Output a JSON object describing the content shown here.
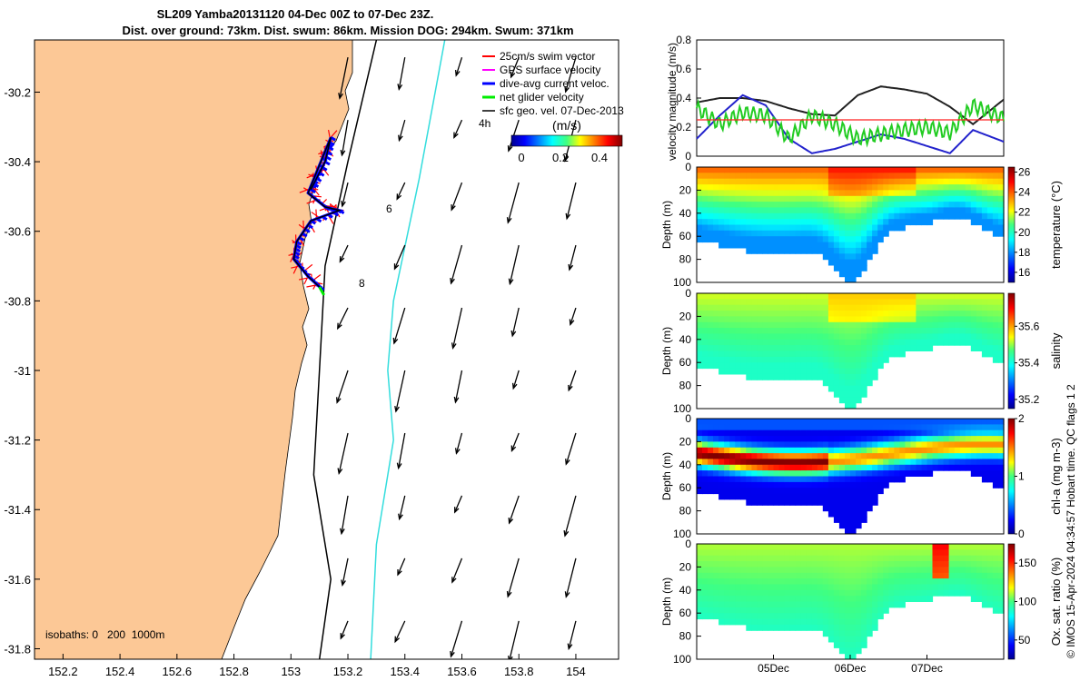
{
  "title": {
    "line1": "SL209 Yamba20131120 04-Dec 00Z to 07-Dec 23Z.",
    "line2": "Dist. over ground: 73km. Dist. swum: 86km. Mission DOG: 294km. Swum: 371km"
  },
  "credit": "© IMOS 15-Apr-2024 04:34:57 Hobart time. QC flags 1  2",
  "colors": {
    "land": "#fcc896",
    "swim": "#ff0000",
    "gps": "#ff00ff",
    "dive_avg": "#0000ff",
    "net_glider": "#00ee00",
    "geostrophic": "#000000",
    "isobath_200": "#000000",
    "isobath_1000": "#33dddd"
  },
  "chart_data": [
    {
      "id": "map",
      "type": "scatter",
      "xlabel": "",
      "ylabel": "",
      "xlim": [
        152.1,
        154.15
      ],
      "ylim": [
        -31.83,
        -30.05
      ],
      "xticks": [
        "152.2",
        "152.4",
        "152.6",
        "152.8",
        "153",
        "153.2",
        "153.4",
        "153.6",
        "153.8",
        "154"
      ],
      "yticks": [
        "-30.2",
        "-30.4",
        "-30.6",
        "-30.8",
        "-31",
        "-31.2",
        "-31.4",
        "-31.6",
        "-31.8"
      ],
      "legend": {
        "placement": "top-right",
        "entries": [
          "25cm/s swim vector",
          "GPS surface velocity",
          "dive-avg current veloc.",
          "net glider velocity",
          "sfc geo. vel. 07-Dec-2013"
        ]
      },
      "colorbar": {
        "label": "(m/s)",
        "ticks": [
          "0",
          "0.2",
          "0.4"
        ],
        "range": [
          0,
          0.5
        ]
      },
      "isobaths_label": "isobaths: 0   200  1000m",
      "track_labels": [
        "4h",
        "6",
        "8"
      ],
      "glider_track": [
        [
          153.07,
          -30.48
        ],
        [
          153.12,
          -30.4
        ],
        [
          153.14,
          -30.33
        ],
        [
          153.09,
          -30.43
        ],
        [
          153.06,
          -30.49
        ],
        [
          153.12,
          -30.53
        ],
        [
          153.17,
          -30.54
        ],
        [
          153.07,
          -30.57
        ],
        [
          153.02,
          -30.63
        ],
        [
          153.01,
          -30.68
        ],
        [
          153.06,
          -30.73
        ],
        [
          153.1,
          -30.76
        ]
      ],
      "isobath_200": [
        [
          153.3,
          -30.05
        ],
        [
          153.2,
          -30.4
        ],
        [
          153.12,
          -30.7
        ],
        [
          153.1,
          -31.0
        ],
        [
          153.08,
          -31.3
        ],
        [
          153.14,
          -31.6
        ],
        [
          153.1,
          -31.83
        ]
      ],
      "isobath_1000": [
        [
          153.54,
          -30.05
        ],
        [
          153.45,
          -30.45
        ],
        [
          153.36,
          -30.8
        ],
        [
          153.34,
          -31.0
        ],
        [
          153.36,
          -31.2
        ],
        [
          153.3,
          -31.5
        ],
        [
          153.28,
          -31.83
        ]
      ],
      "geo_vectors": {
        "lons": [
          153.2,
          153.4,
          153.6,
          153.8,
          154.0
        ],
        "lats": [
          -30.1,
          -30.28,
          -30.46,
          -30.64,
          -30.82,
          -31.0,
          -31.18,
          -31.36,
          -31.54,
          -31.72
        ],
        "u": -0.06,
        "v": -0.3
      }
    },
    {
      "id": "velocity",
      "type": "line",
      "ylabel": "velocity magnitude (m/s)",
      "ylim": [
        0,
        0.8
      ],
      "yticks": [
        "0",
        "0.2",
        "0.4",
        "0.6",
        "0.8"
      ],
      "xlim": [
        0,
        4
      ],
      "series": [
        {
          "name": "",
          "color": "#222222",
          "x": [
            0,
            0.3,
            0.6,
            0.9,
            1.2,
            1.5,
            1.8,
            2.1,
            2.4,
            2.7,
            3.0,
            3.3,
            3.6,
            4.0
          ],
          "y": [
            0.37,
            0.4,
            0.4,
            0.38,
            0.33,
            0.29,
            0.28,
            0.42,
            0.48,
            0.46,
            0.43,
            0.34,
            0.22,
            0.39
          ]
        },
        {
          "name": "",
          "color": "#2222cc",
          "x": [
            0,
            0.3,
            0.6,
            0.9,
            1.2,
            1.5,
            1.8,
            2.1,
            2.4,
            2.7,
            3.0,
            3.3,
            3.6,
            4.0
          ],
          "y": [
            0.12,
            0.28,
            0.42,
            0.35,
            0.12,
            0.02,
            0.05,
            0.1,
            0.15,
            0.12,
            0.07,
            0.02,
            0.18,
            0.1
          ]
        },
        {
          "name": "",
          "color": "#22cc22",
          "x": [
            0,
            0.3,
            0.6,
            0.9,
            1.2,
            1.5,
            1.8,
            2.1,
            2.4,
            2.7,
            3.0,
            3.3,
            3.6,
            4.0
          ],
          "y": [
            0.33,
            0.22,
            0.3,
            0.28,
            0.12,
            0.28,
            0.22,
            0.12,
            0.15,
            0.18,
            0.2,
            0.16,
            0.35,
            0.26
          ]
        },
        {
          "name": "",
          "color": "#ff2222",
          "x": [
            0,
            4
          ],
          "y": [
            0.25,
            0.25
          ]
        }
      ]
    },
    {
      "id": "temperature",
      "type": "heatmap",
      "ylabel": "Depth (m)",
      "ylim": [
        100,
        0
      ],
      "yticks": [
        "0",
        "20",
        "40",
        "60",
        "80",
        "100"
      ],
      "colorbar": {
        "label": "temperature (°C)",
        "ticks": [
          "16",
          "18",
          "20",
          "22",
          "24",
          "26"
        ],
        "range": [
          15,
          26.5
        ]
      },
      "surface_value": 23.8,
      "deep_value": 18
    },
    {
      "id": "salinity",
      "type": "heatmap",
      "ylabel": "Depth (m)",
      "ylim": [
        100,
        0
      ],
      "yticks": [
        "0",
        "20",
        "40",
        "60",
        "80",
        "100"
      ],
      "colorbar": {
        "label": "salinity",
        "ticks": [
          "35.2",
          "35.4",
          "35.6"
        ],
        "range": [
          35.15,
          35.78
        ]
      },
      "surface_value": 35.52,
      "deep_value": 35.42
    },
    {
      "id": "chlorophyll",
      "type": "heatmap",
      "ylabel": "Depth (m)",
      "ylim": [
        100,
        0
      ],
      "yticks": [
        "0",
        "20",
        "40",
        "60",
        "80",
        "100"
      ],
      "colorbar": {
        "label": "chl-a (mg m-3)",
        "ticks": [
          "0",
          "1",
          "2"
        ],
        "range": [
          0,
          2
        ]
      },
      "surface_value": 0.6,
      "max_value": 2.0,
      "deep_value": 0.2
    },
    {
      "id": "oxygen",
      "type": "heatmap",
      "ylabel": "Depth (m)",
      "ylim": [
        100,
        0
      ],
      "yticks": [
        "0",
        "20",
        "40",
        "60",
        "80",
        "100"
      ],
      "xticks": [
        "05Dec",
        "06Dec",
        "07Dec"
      ],
      "colorbar": {
        "label": "Ox. sat. ratio (%)",
        "ticks": [
          "50",
          "100",
          "150"
        ],
        "range": [
          25,
          175
        ]
      },
      "surface_value": 110,
      "deep_value": 80
    }
  ]
}
